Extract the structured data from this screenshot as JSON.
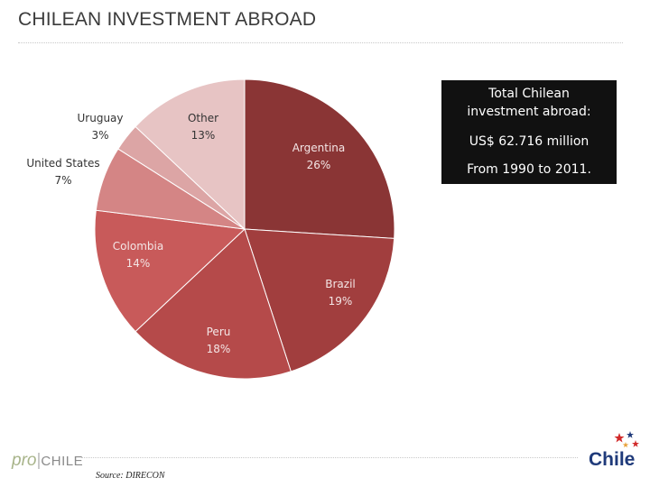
{
  "page": {
    "title": "CHILEAN INVESTMENT ABROAD",
    "source": "Source: DIRECON",
    "logo_left": {
      "pro": "pro",
      "sep": "|",
      "chile": "CHILE"
    },
    "logo_right": "Chile"
  },
  "infobox": {
    "line1": "Total Chilean",
    "line2": "investment abroad:",
    "line3": "US$ 62.716 million",
    "line4": "From 1990 to 2011."
  },
  "chart_data": {
    "type": "pie",
    "title": "",
    "slices": [
      {
        "label": "Argentina",
        "value": 26,
        "display": "26%",
        "color": "#8a3535"
      },
      {
        "label": "Brazil",
        "value": 19,
        "display": "19%",
        "color": "#a13e3e"
      },
      {
        "label": "Peru",
        "value": 18,
        "display": "18%",
        "color": "#b54a4a"
      },
      {
        "label": "Colombia",
        "value": 14,
        "display": "14%",
        "color": "#c85a5a"
      },
      {
        "label": "United States",
        "value": 7,
        "display": "7%",
        "color": "#d48585"
      },
      {
        "label": "Uruguay",
        "value": 3,
        "display": "3%",
        "color": "#dca5a5"
      },
      {
        "label": "Other",
        "value": 13,
        "display": "13%",
        "color": "#e7c4c4"
      }
    ],
    "label_colors": {
      "dark": "#f4e6e6",
      "light": "#333333"
    }
  }
}
